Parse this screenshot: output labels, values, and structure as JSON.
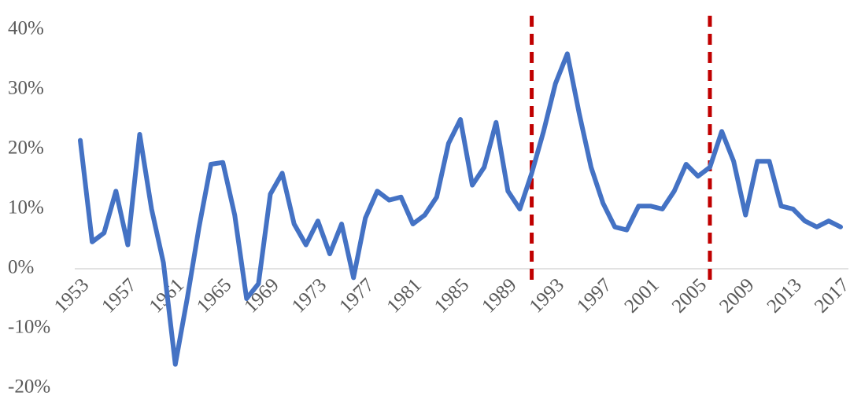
{
  "chart_data": {
    "type": "line",
    "x": [
      1953,
      1954,
      1955,
      1956,
      1957,
      1958,
      1959,
      1960,
      1961,
      1962,
      1963,
      1964,
      1965,
      1966,
      1967,
      1968,
      1969,
      1970,
      1971,
      1972,
      1973,
      1974,
      1975,
      1976,
      1977,
      1978,
      1979,
      1980,
      1981,
      1982,
      1983,
      1984,
      1985,
      1986,
      1987,
      1988,
      1989,
      1990,
      1991,
      1992,
      1993,
      1994,
      1995,
      1996,
      1997,
      1998,
      1999,
      2000,
      2001,
      2002,
      2003,
      2004,
      2005,
      2006,
      2007,
      2008,
      2009,
      2010,
      2011,
      2012,
      2013,
      2014,
      2015,
      2016,
      2017
    ],
    "series": [
      {
        "color": "#4472c4",
        "values": [
          21.5,
          4.5,
          6,
          13,
          4,
          22.5,
          10,
          1,
          -16,
          -5,
          7,
          17.5,
          17.8,
          9,
          -5,
          -2.5,
          12.5,
          16,
          7.5,
          4,
          8,
          2.5,
          7.5,
          -1.5,
          8.5,
          13,
          11.5,
          12,
          7.5,
          9,
          12,
          21,
          25,
          14,
          17,
          24.5,
          13,
          10,
          16,
          23,
          31,
          36,
          26,
          17,
          11,
          7,
          6.5,
          10.5,
          10.5,
          10,
          13,
          17.5,
          15.5,
          17,
          23,
          18,
          9,
          18,
          18,
          10.5,
          10,
          8,
          7,
          8,
          7
        ]
      }
    ],
    "xlim": [
      1953,
      2017
    ],
    "xticks": [
      1953,
      1957,
      1961,
      1965,
      1969,
      1973,
      1977,
      1981,
      1985,
      1989,
      1993,
      1997,
      2001,
      2005,
      2009,
      2013,
      2017
    ],
    "ylim": [
      -20,
      40
    ],
    "yticks": [
      {
        "value": -20,
        "label": "-20%"
      },
      {
        "value": -10,
        "label": "-10%"
      },
      {
        "value": 0,
        "label": "0%"
      },
      {
        "value": 10,
        "label": "10%"
      },
      {
        "value": 20,
        "label": "20%"
      },
      {
        "value": 30,
        "label": "30%"
      },
      {
        "value": 40,
        "label": "40%"
      }
    ],
    "vlines": [
      1991,
      2006
    ],
    "vline_color": "#c00000"
  }
}
